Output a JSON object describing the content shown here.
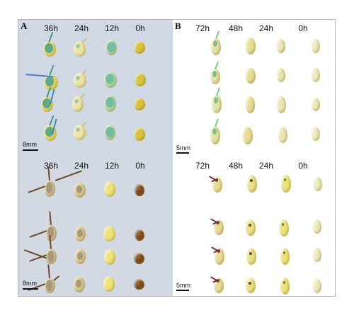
{
  "panels": {
    "A": "A",
    "B": "B"
  },
  "top_left": {
    "headers": [
      "36h",
      "24h",
      "12h",
      "0h"
    ],
    "scale": "8mm"
  },
  "bottom_left": {
    "headers": [
      "36h",
      "24h",
      "12h",
      "0h"
    ],
    "scale": "8mm"
  },
  "top_right": {
    "headers": [
      "72h",
      "48h",
      "24h",
      "0h"
    ],
    "scale": "5mm"
  },
  "bottom_right": {
    "headers": [
      "72h",
      "48h",
      "24h",
      "0h"
    ],
    "scale": "5mm"
  },
  "colors": {
    "seed_yellow": "#e8d66a",
    "seed_pale": "#ede3a8",
    "stain_blue": "#3c9d8a",
    "stain_brown": "#6b4a2a",
    "panel_blue_bg": "#cfd8e3"
  }
}
